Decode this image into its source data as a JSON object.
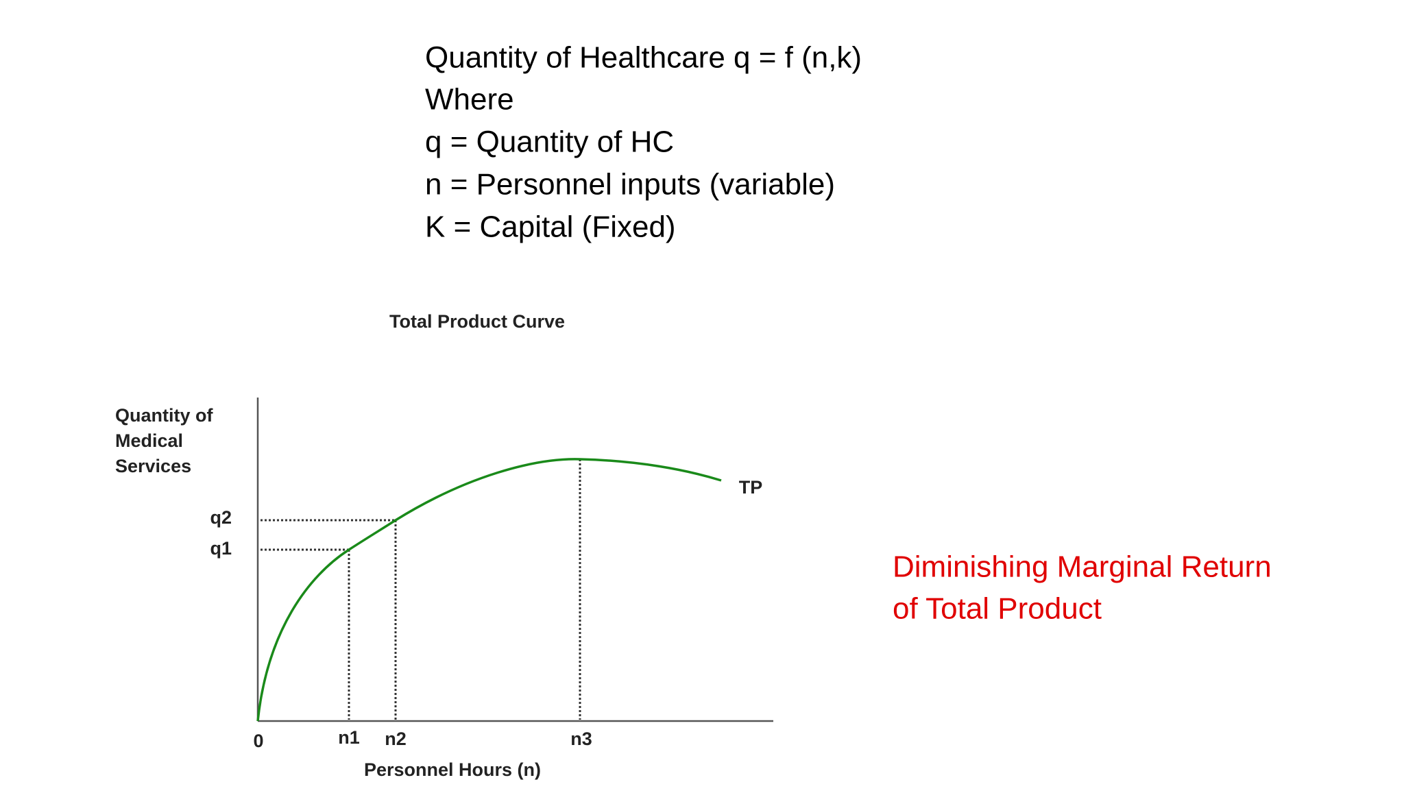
{
  "text_block": {
    "lines": [
      "Quantity of Healthcare q = f (n,k)",
      "Where",
      "q = Quantity of HC",
      "n = Personnel inputs (variable)",
      "K = Capital (Fixed)"
    ]
  },
  "diagram": {
    "title": "Total Product Curve",
    "y_axis_label": [
      "Quantity of",
      "Medical",
      "Services"
    ],
    "x_axis_label": "Personnel Hours (n)",
    "origin": "0",
    "curve_label": "TP",
    "y_markers": [
      "q2",
      "q1"
    ],
    "x_markers": [
      "n1",
      "n2",
      "n3"
    ]
  },
  "annotation": {
    "lines": [
      "Diminishing Marginal Return",
      "of Total Product"
    ]
  }
}
